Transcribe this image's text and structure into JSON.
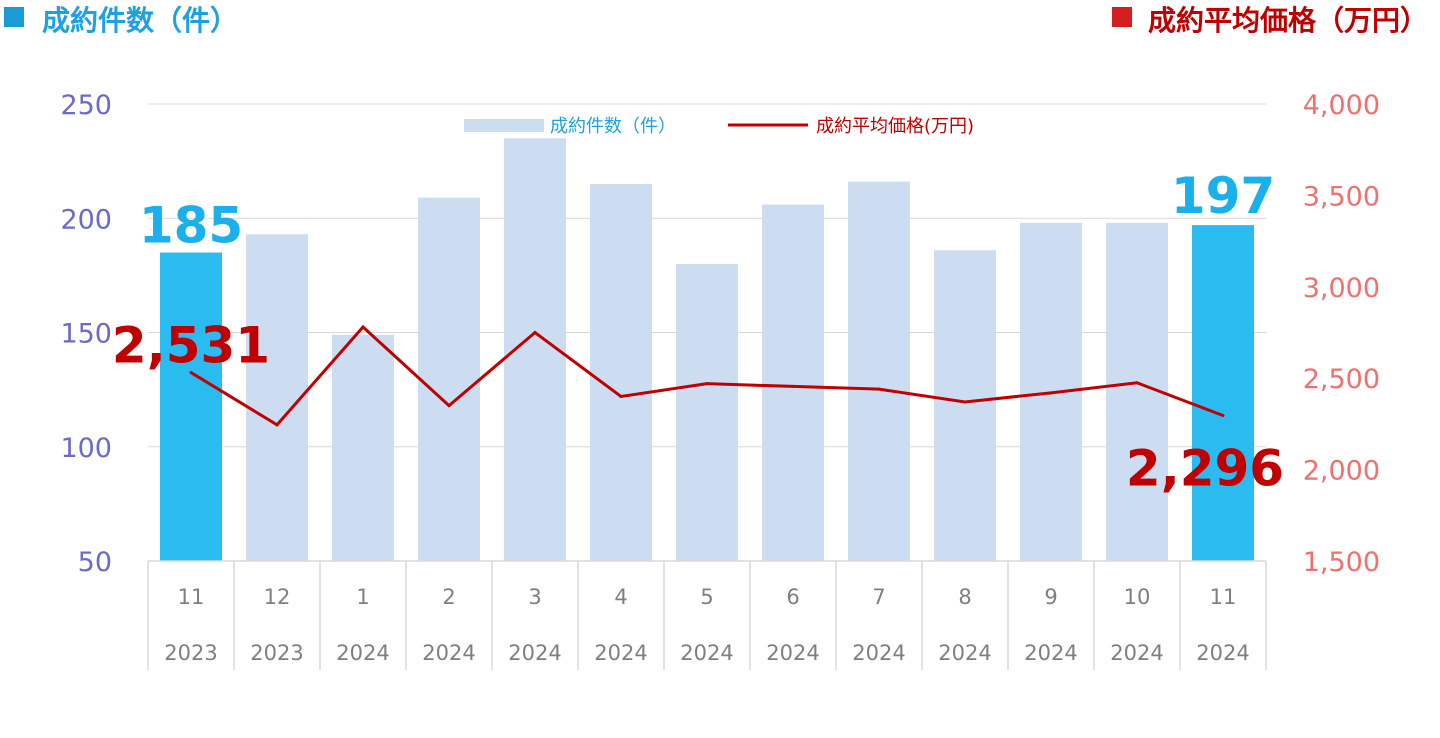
{
  "header": {
    "left_title": "成約件数（件）",
    "right_title": "成約平均価格（万円）"
  },
  "colors": {
    "bar_normal": "#ccddf1",
    "bar_highlight": "#2abbf0",
    "line": "#c00000",
    "left_axis_text": "#6a6ac8",
    "right_axis_text": "#f07070",
    "left_title": "#1fa0e0",
    "right_title": "#c00000",
    "left_marker": "#1b9ad8",
    "right_marker": "#d21e1e",
    "grid": "#d9d9d9",
    "label_bar": "#1ab0ec",
    "label_line": "#c00000"
  },
  "chart_data": {
    "type": "bar",
    "categories": [
      {
        "month": "11",
        "year": "2023"
      },
      {
        "month": "12",
        "year": "2023"
      },
      {
        "month": "1",
        "year": "2024"
      },
      {
        "month": "2",
        "year": "2024"
      },
      {
        "month": "3",
        "year": "2024"
      },
      {
        "month": "4",
        "year": "2024"
      },
      {
        "month": "5",
        "year": "2024"
      },
      {
        "month": "6",
        "year": "2024"
      },
      {
        "month": "7",
        "year": "2024"
      },
      {
        "month": "8",
        "year": "2024"
      },
      {
        "month": "9",
        "year": "2024"
      },
      {
        "month": "10",
        "year": "2024"
      },
      {
        "month": "11",
        "year": "2024"
      }
    ],
    "series": [
      {
        "name": "成約件数（件）",
        "type": "bar",
        "axis": "left",
        "values": [
          185,
          193,
          149,
          209,
          235,
          215,
          180,
          206,
          216,
          186,
          198,
          198,
          197
        ],
        "highlight": [
          true,
          false,
          false,
          false,
          false,
          false,
          false,
          false,
          false,
          false,
          false,
          false,
          true
        ]
      },
      {
        "name": "成約平均価格(万円)",
        "type": "line",
        "axis": "right",
        "values": [
          2531,
          2245,
          2780,
          2350,
          2750,
          2400,
          2470,
          2455,
          2440,
          2370,
          2420,
          2475,
          2296
        ]
      }
    ],
    "left_axis": {
      "min": 50,
      "max": 250,
      "ticks": [
        "250",
        "200",
        "150",
        "100",
        "50"
      ]
    },
    "right_axis": {
      "min": 1500,
      "max": 4000,
      "ticks": [
        "4,000",
        "3,500",
        "3,000",
        "2,500",
        "2,000",
        "1,500"
      ]
    },
    "annotations": {
      "first_bar": "185",
      "last_bar": "197",
      "first_line": "2,531",
      "last_line": "2,296"
    },
    "legend_placement": "top-center",
    "grid": true
  }
}
